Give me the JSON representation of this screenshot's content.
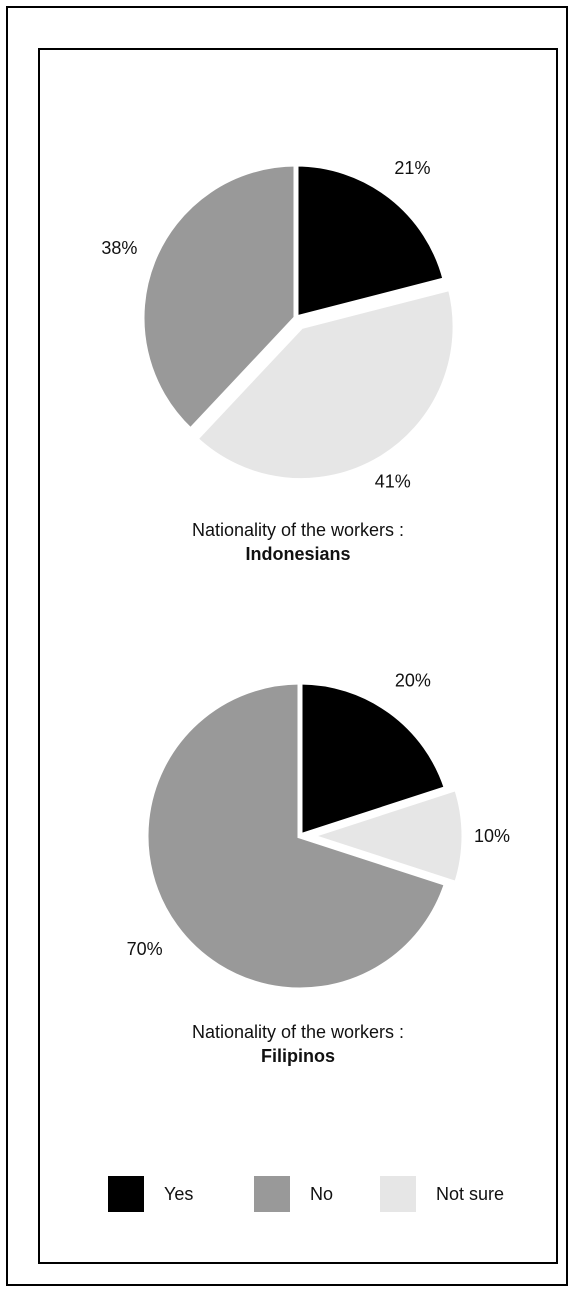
{
  "chart_data": [
    {
      "type": "pie",
      "title": "Nationality of the workers :",
      "subtitle": "Indonesians",
      "categories": [
        "Yes",
        "Not sure",
        "No"
      ],
      "values": [
        21,
        41,
        38
      ],
      "labels": [
        "21%",
        "41%",
        "38%"
      ],
      "colors": [
        "#000000",
        "#e6e6e6",
        "#999999"
      ]
    },
    {
      "type": "pie",
      "title": "Nationality of the workers :",
      "subtitle": "Filipinos",
      "categories": [
        "Yes",
        "Not sure",
        "No"
      ],
      "values": [
        20,
        10,
        70
      ],
      "labels": [
        "20%",
        "10%",
        "70%"
      ],
      "colors": [
        "#000000",
        "#e6e6e6",
        "#999999"
      ]
    }
  ],
  "legend": [
    {
      "label": "Yes",
      "color": "#000000"
    },
    {
      "label": "No",
      "color": "#999999"
    },
    {
      "label": "Not sure",
      "color": "#e6e6e6"
    }
  ]
}
